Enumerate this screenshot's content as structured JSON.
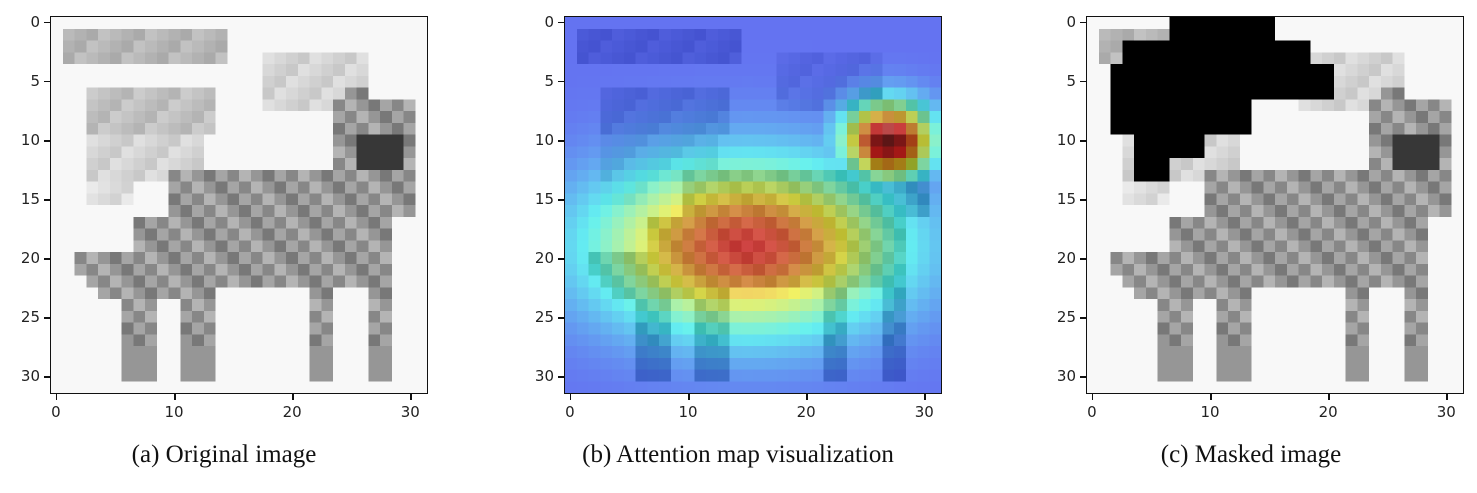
{
  "panels": [
    {
      "caption": "(a) Original image",
      "x_ticks": [
        "0",
        "10",
        "20",
        "30"
      ],
      "y_ticks": [
        "0",
        "5",
        "10",
        "15",
        "20",
        "25",
        "30"
      ],
      "variant": "original"
    },
    {
      "caption": "(b) Attention map visualization",
      "x_ticks": [
        "0",
        "10",
        "20",
        "30"
      ],
      "y_ticks": [
        "0",
        "5",
        "10",
        "15",
        "20",
        "25",
        "30"
      ],
      "variant": "attention"
    },
    {
      "caption": "(c) Masked image",
      "x_ticks": [
        "0",
        "10",
        "20",
        "30"
      ],
      "y_ticks": [
        "0",
        "5",
        "10",
        "15",
        "20",
        "25",
        "30"
      ],
      "variant": "masked"
    }
  ],
  "colors": {
    "mask": "#000000",
    "attention_low": "#6a6cf0",
    "attention_high": "#c81e1e",
    "axis": "#111111"
  }
}
